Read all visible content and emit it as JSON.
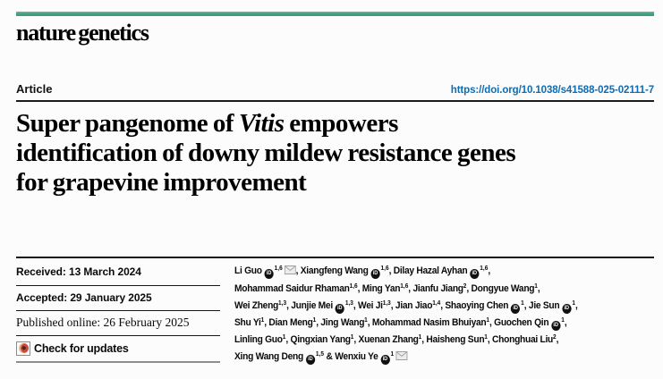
{
  "masthead": {
    "brand": "nature genetics"
  },
  "header": {
    "article_label": "Article",
    "doi": "https://doi.org/10.1038/s41588-025-02111-7"
  },
  "title": {
    "pre": "Super pangenome of ",
    "italic": "Vitis",
    "post": " empowers identification of downy mildew resistance genes for grapevine improvement"
  },
  "meta": {
    "rows": [
      {
        "label": "Received",
        "value": "13 March 2024"
      },
      {
        "label": "Accepted",
        "value": "29 January 2025"
      },
      {
        "label": "Published online",
        "value": "26 February 2025"
      }
    ],
    "check_for_updates": "Check for updates",
    "crossmark_icon": "crossmark-badge"
  },
  "authors": {
    "separator": ", ",
    "ampersand": "&",
    "orcid_icon": "orcid-id-badge",
    "mail_icon": "envelope",
    "list": [
      {
        "name": "Li Guo",
        "orcid": true,
        "sup": "1,6",
        "mail": true,
        "br": false
      },
      {
        "name": "Xiangfeng Wang",
        "orcid": true,
        "sup": "1,6",
        "mail": false,
        "br": false
      },
      {
        "name": "Dilay Hazal Ayhan",
        "orcid": true,
        "sup": "1,6",
        "mail": false,
        "br": true
      },
      {
        "name": "Mohammad Saidur Rhaman",
        "orcid": false,
        "sup": "1,6",
        "mail": false,
        "br": false
      },
      {
        "name": "Ming Yan",
        "orcid": false,
        "sup": "1,6",
        "mail": false,
        "br": false
      },
      {
        "name": "Jianfu Jiang",
        "orcid": false,
        "sup": "2",
        "mail": false,
        "br": false
      },
      {
        "name": "Dongyue Wang",
        "orcid": false,
        "sup": "1",
        "mail": false,
        "br": true
      },
      {
        "name": "Wei Zheng",
        "orcid": false,
        "sup": "1,3",
        "mail": false,
        "br": false
      },
      {
        "name": "Junjie Mei",
        "orcid": true,
        "sup": "1,3",
        "mail": false,
        "br": false
      },
      {
        "name": "Wei Ji",
        "orcid": false,
        "sup": "1,3",
        "mail": false,
        "br": false
      },
      {
        "name": "Jian Jiao",
        "orcid": false,
        "sup": "1,4",
        "mail": false,
        "br": false
      },
      {
        "name": "Shaoying Chen",
        "orcid": true,
        "sup": "1",
        "mail": false,
        "br": false
      },
      {
        "name": "Jie Sun",
        "orcid": true,
        "sup": "1",
        "mail": false,
        "br": true
      },
      {
        "name": "Shu Yi",
        "orcid": false,
        "sup": "1",
        "mail": false,
        "br": false
      },
      {
        "name": "Dian Meng",
        "orcid": false,
        "sup": "1",
        "mail": false,
        "br": false
      },
      {
        "name": "Jing Wang",
        "orcid": false,
        "sup": "1",
        "mail": false,
        "br": false
      },
      {
        "name": "Mohammad Nasim Bhuiyan",
        "orcid": false,
        "sup": "1",
        "mail": false,
        "br": false
      },
      {
        "name": "Guochen Qin",
        "orcid": true,
        "sup": "1",
        "mail": false,
        "br": true
      },
      {
        "name": "Linling Guo",
        "orcid": false,
        "sup": "1",
        "mail": false,
        "br": false
      },
      {
        "name": "Qingxian Yang",
        "orcid": false,
        "sup": "1",
        "mail": false,
        "br": false
      },
      {
        "name": "Xuenan Zhang",
        "orcid": false,
        "sup": "1",
        "mail": false,
        "br": false
      },
      {
        "name": "Haisheng Sun",
        "orcid": false,
        "sup": "1",
        "mail": false,
        "br": false
      },
      {
        "name": "Chonghuai Liu",
        "orcid": false,
        "sup": "2",
        "mail": false,
        "br": true
      },
      {
        "name": "Xing Wang Deng",
        "orcid": true,
        "sup": "1,5",
        "mail": false,
        "br": false
      },
      {
        "name": "Wenxiu Ye",
        "orcid": true,
        "sup": "1",
        "mail": true,
        "br": false
      }
    ]
  },
  "colors": {
    "brand_bar_teal": "#3f9e7f",
    "link_blue": "#0d6cb4",
    "rule_dark": "#1c1c1c",
    "rule_gray": "#8e8e8e",
    "crossmark_red": "#cc4a40",
    "crossmark_tan": "#e9c494"
  }
}
